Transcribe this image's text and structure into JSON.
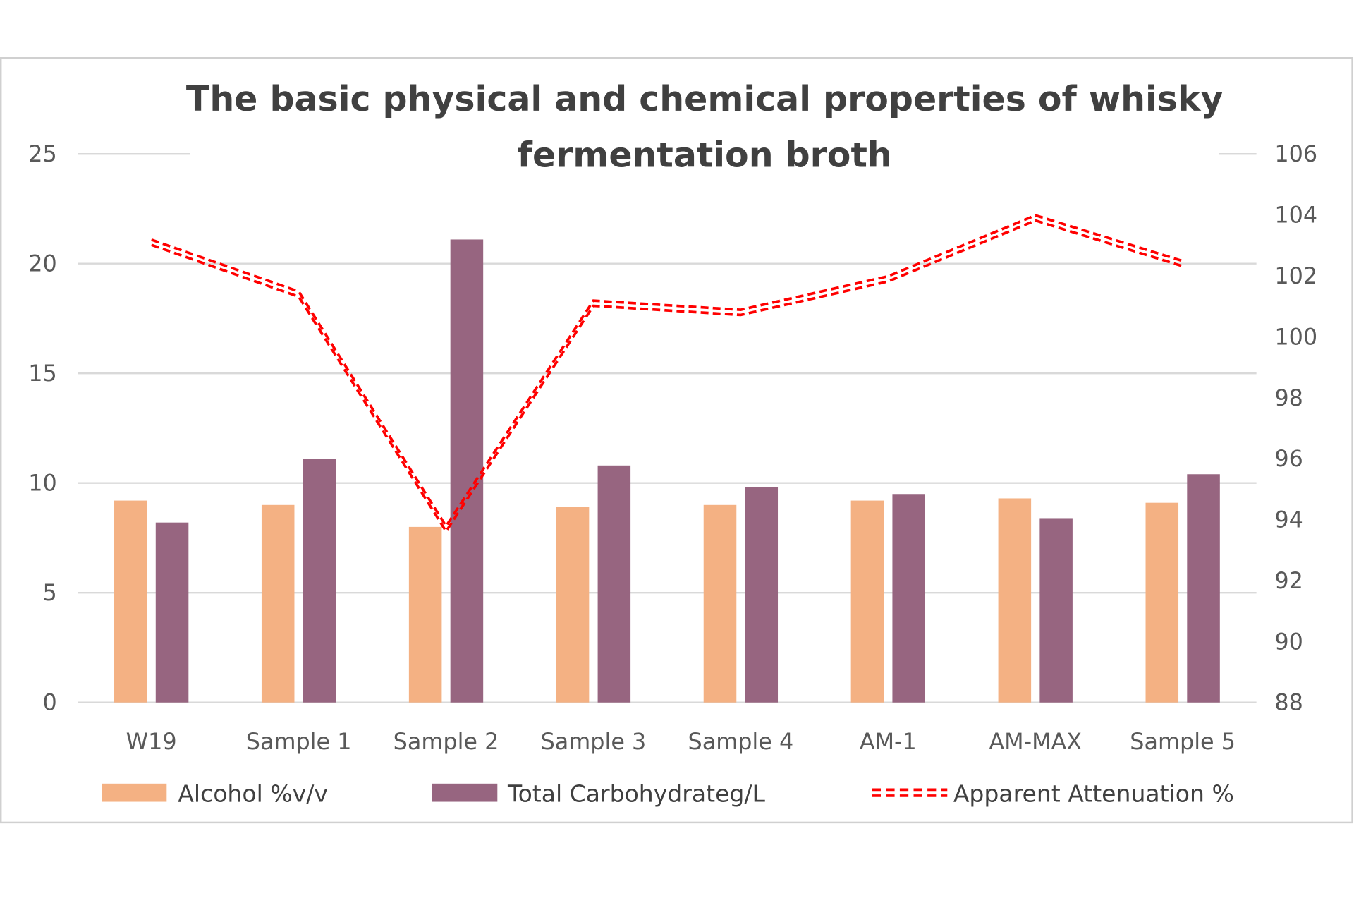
{
  "chart_data": {
    "type": "bar",
    "title_lines": [
      "The basic physical and chemical properties of whisky",
      "fermentation broth"
    ],
    "categories": [
      "W19",
      "Sample 1",
      "Sample 2",
      "Sample 3",
      "Sample 4",
      "AM-1",
      "AM-MAX",
      "Sample 5"
    ],
    "y_left": {
      "range": [
        0,
        25
      ],
      "ticks": [
        "0",
        "5",
        "10",
        "15",
        "20",
        "25"
      ]
    },
    "y_right": {
      "range": [
        88,
        106
      ],
      "ticks": [
        "88",
        "90",
        "92",
        "94",
        "96",
        "98",
        "100",
        "102",
        "104",
        "106"
      ]
    },
    "grid": true,
    "legend_position": "bottom",
    "series": [
      {
        "name": "Alcohol %v/v",
        "type": "bar",
        "axis": "left",
        "color": "#F4B183",
        "values": [
          9.2,
          9.0,
          8.0,
          8.9,
          9.0,
          9.2,
          9.3,
          9.1
        ]
      },
      {
        "name": "Total Carbohydrateg/L",
        "type": "bar",
        "axis": "left",
        "color": "#976580",
        "values": [
          8.2,
          11.1,
          21.1,
          10.8,
          9.8,
          9.5,
          8.4,
          10.4
        ]
      },
      {
        "name": "Apparent Attenuation %",
        "type": "line",
        "axis": "right",
        "color": "#FF0000",
        "style": "double-dashed",
        "values": [
          103.1,
          101.4,
          93.7,
          101.1,
          100.8,
          101.9,
          103.9,
          102.4
        ]
      }
    ]
  }
}
